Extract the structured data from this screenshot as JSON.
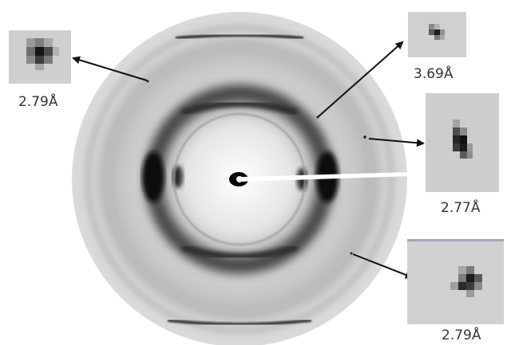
{
  "figure": {
    "description_free": true,
    "colors": {
      "background": "#ffffff",
      "disk": "#d5d5d5",
      "ring_dark": "#1c1c1c",
      "beamstop": "#ffffff",
      "arrow": "#111111"
    },
    "insets": [
      {
        "id": "top-left",
        "label": "2.79Å"
      },
      {
        "id": "top-right",
        "label": "3.69Å"
      },
      {
        "id": "right",
        "label": "2.77Å"
      },
      {
        "id": "bottom-right",
        "label": "2.79Å"
      }
    ]
  }
}
